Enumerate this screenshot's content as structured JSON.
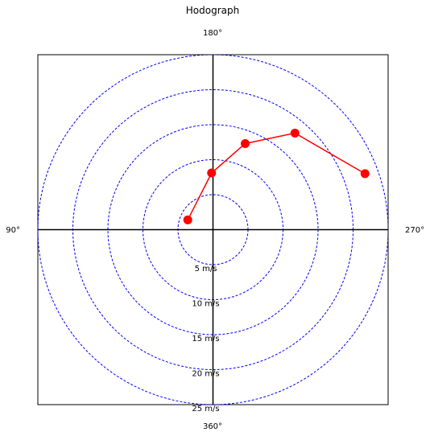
{
  "chart_data": {
    "type": "line",
    "title": "Hodograph",
    "xlabel": "",
    "ylabel": "",
    "xlim": [
      -25,
      25
    ],
    "ylim": [
      -25,
      25
    ],
    "grid": false,
    "direction_labels": {
      "top": "180°",
      "left": "90°",
      "right": "270°",
      "bottom": "360°"
    },
    "rings": [
      {
        "radius": 5,
        "label": "5 m/s"
      },
      {
        "radius": 10,
        "label": "10 m/s"
      },
      {
        "radius": 15,
        "label": "15 m/s"
      },
      {
        "radius": 20,
        "label": "20 m/s"
      },
      {
        "radius": 25,
        "label": "25 m/s"
      }
    ],
    "series": [
      {
        "x": [
          -3.6,
          -0.2,
          4.6,
          11.7,
          21.7
        ],
        "y": [
          1.4,
          8.1,
          12.3,
          13.8,
          8.0
        ]
      }
    ],
    "colors": {
      "line": "#ff0000",
      "marker": "#ff0000",
      "rings": "#0000ff",
      "axes": "#000000"
    }
  }
}
